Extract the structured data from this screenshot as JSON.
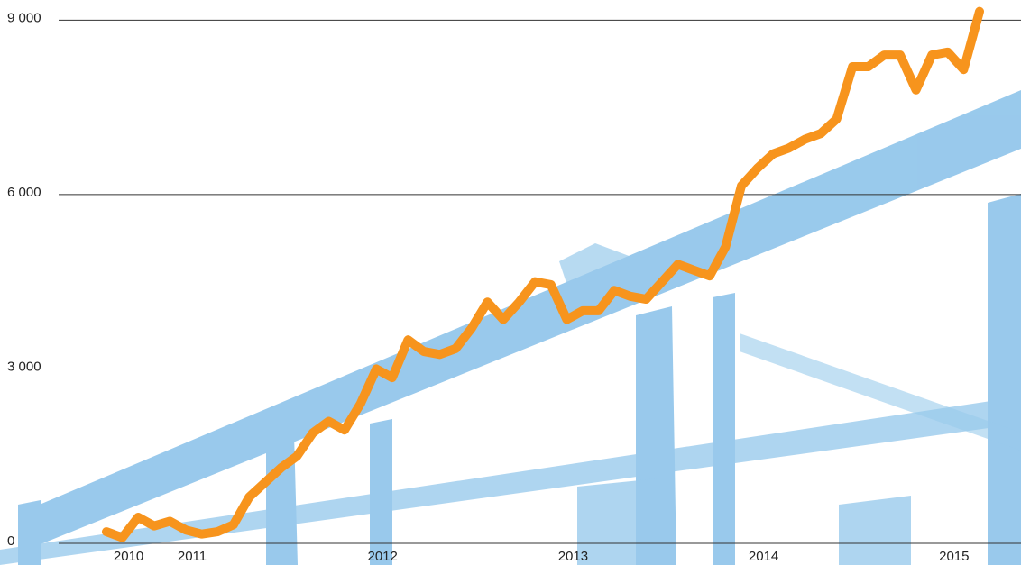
{
  "chart_data": {
    "type": "line",
    "categories": [
      null,
      "2010",
      null,
      null,
      null,
      "2011",
      null,
      null,
      null,
      null,
      null,
      null,
      null,
      null,
      null,
      null,
      null,
      "2012",
      null,
      null,
      null,
      null,
      null,
      null,
      null,
      null,
      null,
      null,
      null,
      "2013",
      null,
      null,
      null,
      null,
      null,
      null,
      null,
      null,
      null,
      null,
      null,
      "2014",
      null,
      null,
      null,
      null,
      null,
      null,
      null,
      null,
      null,
      null,
      null,
      "2015",
      null,
      null
    ],
    "series": [
      {
        "color": "#f7941d",
        "values": [
          200,
          100,
          450,
          300,
          380,
          230,
          160,
          200,
          320,
          800,
          1050,
          1300,
          1500,
          1900,
          2100,
          1950,
          2400,
          3000,
          2850,
          3500,
          3300,
          3250,
          3350,
          3700,
          4150,
          3850,
          4150,
          4500,
          4450,
          3850,
          4000,
          4000,
          4350,
          4250,
          4200,
          4500,
          4800,
          4700,
          4600,
          5100,
          6150,
          6450,
          6700,
          6800,
          6950,
          7050,
          7300,
          8200,
          8200,
          8400,
          8400,
          7800,
          8400,
          8450,
          8150,
          9150
        ]
      }
    ],
    "ylim": [
      0,
      9300
    ],
    "yticks": [
      0,
      {
        "value": 3000,
        "label": "3 000"
      },
      {
        "value": 6000,
        "label": "6 000"
      },
      {
        "value": 9000,
        "label": "9 000"
      }
    ],
    "grid": true
  }
}
